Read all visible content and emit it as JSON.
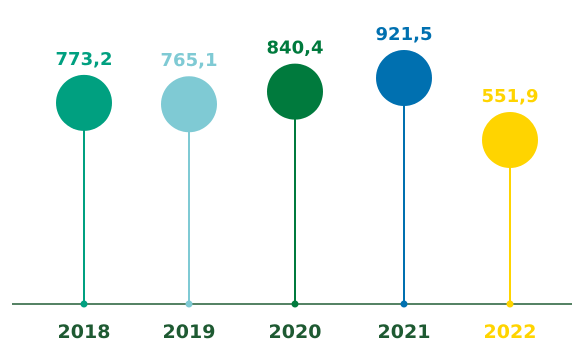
{
  "chart_data": {
    "type": "lollipop",
    "categories": [
      "2018",
      "2019",
      "2020",
      "2021",
      "2022"
    ],
    "values": [
      773.2,
      765.1,
      840.4,
      921.5,
      551.9
    ],
    "value_labels": [
      "773,2",
      "765,1",
      "840,4",
      "921,5",
      "551,9"
    ],
    "point_colors": [
      "#00a080",
      "#7fcad4",
      "#007a3d",
      "#0070b0",
      "#ffd400"
    ],
    "category_label_colors": [
      "#1e5a32",
      "#1e5a32",
      "#1e5a32",
      "#1e5a32",
      "#ffd400"
    ],
    "baseline_color": "#1e5a32",
    "grid": false,
    "legend": "none"
  }
}
